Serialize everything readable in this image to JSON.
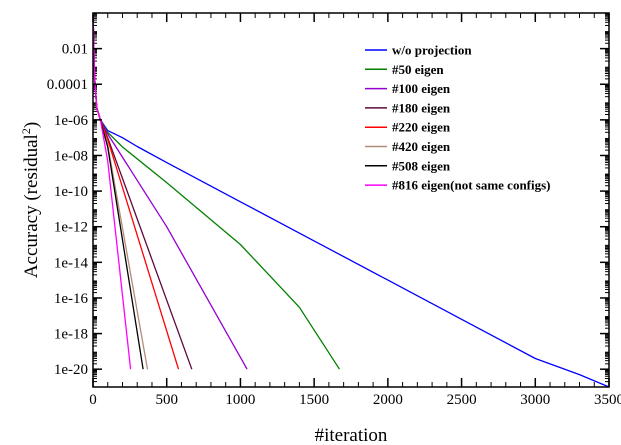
{
  "chart_data": {
    "type": "line",
    "title": "",
    "xlabel": "#iteration",
    "ylabel": "Accuracy (residual",
    "ylabel_superscript": "2",
    "ylabel_close": ")",
    "scale": {
      "x": "linear",
      "y": "log"
    },
    "xlim": [
      0,
      3500
    ],
    "ylim": [
      1e-21,
      1
    ],
    "x_ticks": [
      0,
      500,
      1000,
      1500,
      2000,
      2500,
      3000,
      3500
    ],
    "x_tick_labels": [
      "0",
      "500",
      "1000",
      "1500",
      "2000",
      "2500",
      "3000",
      "3500"
    ],
    "y_ticks": [
      0.01,
      0.0001,
      1e-06,
      1e-08,
      1e-10,
      1e-12,
      1e-14,
      1e-16,
      1e-18,
      1e-20
    ],
    "y_tick_labels": [
      "0.01",
      "0.0001",
      "1e-06",
      "1e-08",
      "1e-10",
      "1e-12",
      "1e-14",
      "1e-16",
      "1e-18",
      "1e-20"
    ],
    "grid": false,
    "legend_position": "top-right",
    "series": [
      {
        "name": "w/o projection",
        "color": "#0000ff",
        "x": [
          0,
          10,
          25,
          50,
          100,
          200,
          300,
          500,
          1000,
          1500,
          2000,
          2500,
          3000,
          3300,
          3500
        ],
        "y": [
          1,
          0.0003,
          5e-06,
          1e-06,
          2.5e-07,
          1e-07,
          3.2e-08,
          4e-09,
          2.5e-11,
          1.6e-13,
          1e-15,
          6.3e-18,
          4e-20,
          5e-21,
          1e-21
        ]
      },
      {
        "name": "#50 eigen",
        "color": "#008000",
        "x": [
          0,
          10,
          25,
          50,
          100,
          200,
          500,
          1000,
          1400,
          1672
        ],
        "y": [
          1,
          0.0003,
          5e-06,
          1e-06,
          2e-07,
          3e-08,
          3e-10,
          1e-13,
          3e-17,
          1e-20
        ]
      },
      {
        "name": "#100 eigen",
        "color": "#9400d3",
        "x": [
          0,
          10,
          25,
          50,
          100,
          500,
          1045
        ],
        "y": [
          1,
          0.0003,
          5e-06,
          1e-06,
          1.6e-07,
          1e-12,
          1e-20
        ]
      },
      {
        "name": "#180 eigen",
        "color": "#5c0a3c",
        "x": [
          0,
          10,
          25,
          50,
          100,
          670
        ],
        "y": [
          1,
          0.0003,
          5e-06,
          1e-06,
          1e-07,
          1e-20
        ]
      },
      {
        "name": "#220 eigen",
        "color": "#ff0000",
        "x": [
          0,
          10,
          25,
          50,
          100,
          580
        ],
        "y": [
          1,
          0.0003,
          5e-06,
          1e-06,
          8e-08,
          1e-20
        ]
      },
      {
        "name": "#420 eigen",
        "color": "#b38c78",
        "x": [
          0,
          10,
          25,
          50,
          100,
          370
        ],
        "y": [
          1,
          0.0003,
          5e-06,
          1e-06,
          4e-08,
          1e-20
        ]
      },
      {
        "name": "#508 eigen",
        "color": "#000000",
        "x": [
          0,
          10,
          25,
          50,
          100,
          340
        ],
        "y": [
          1,
          0.0003,
          5e-06,
          1e-06,
          3e-08,
          1e-20
        ]
      },
      {
        "name": "#816 eigen(not same configs)",
        "color": "#ff00ff",
        "x": [
          0,
          10,
          25,
          50,
          100,
          255
        ],
        "y": [
          1,
          0.0003,
          5e-06,
          1e-06,
          5e-09,
          1e-20
        ]
      }
    ]
  }
}
